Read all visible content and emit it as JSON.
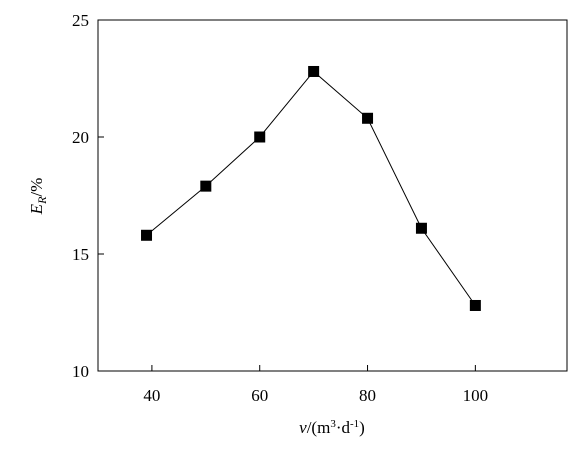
{
  "chart_data": {
    "type": "line",
    "title": "",
    "xlabel": {
      "var": "v",
      "pre": "/(m",
      "sup1": "3",
      "mid": "·d",
      "sup2": "-1",
      "post": ")"
    },
    "ylabel": {
      "var": "E",
      "sub": "R",
      "unit": "/%"
    },
    "x": [
      39,
      50,
      60,
      70,
      80,
      90,
      100
    ],
    "series": [
      {
        "values": [
          15.8,
          17.9,
          20.0,
          22.8,
          20.8,
          16.1,
          12.8
        ],
        "marker": "square",
        "color": "#000000"
      }
    ],
    "xlim": [
      30,
      117
    ],
    "ylim": [
      10,
      25
    ],
    "xticks": [
      40,
      60,
      80,
      100
    ],
    "yticks": [
      10,
      15,
      20,
      25
    ],
    "xtick_labels": [
      "40",
      "60",
      "80",
      "100"
    ],
    "ytick_labels": [
      "10",
      "15",
      "20",
      "25"
    ],
    "grid": false,
    "legend": "none"
  }
}
